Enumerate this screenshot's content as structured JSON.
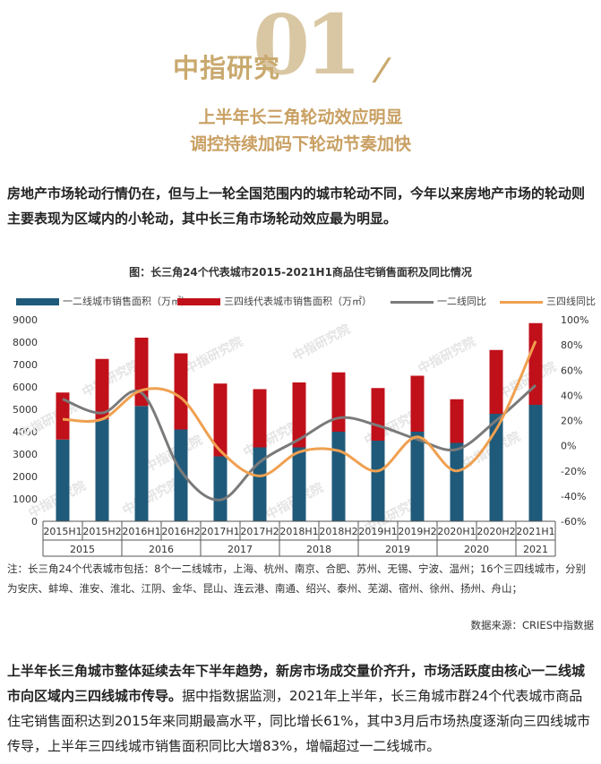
{
  "header": {
    "big_number": "01",
    "brand": "中指研究",
    "slash": "/",
    "subtitle_lines": [
      "上半年长三角轮动效应明显",
      "调控持续加码下轮动节奏加快"
    ]
  },
  "intro_paragraph": "房地产市场轮动行情仍在，但与上一轮全国范围内的城市轮动不同，今年以来房地产市场的轮动则主要表现为区域内的小轮动，其中长三角市场轮动效应最为明显。",
  "chart_data": {
    "type": "bar",
    "title": "图：长三角24个代表城市2015-2021H1商品住宅销售面积及同比情况",
    "categories": [
      "2015H1",
      "2015H2",
      "2016H1",
      "2016H2",
      "2017H1",
      "2017H2",
      "2018H1",
      "2018H2",
      "2019H1",
      "2019H2",
      "2020H1",
      "2020H2",
      "2021H1"
    ],
    "years": [
      {
        "label": "2015"
      },
      {
        "label": "2016"
      },
      {
        "label": "2017"
      },
      {
        "label": "2018"
      },
      {
        "label": "2019"
      },
      {
        "label": "2020"
      },
      {
        "label": "2021"
      }
    ],
    "series": [
      {
        "name": "一二线城市销售面积（万㎡）",
        "kind": "bar",
        "stack": true,
        "color": "#1f5a7a",
        "values": [
          3650,
          4550,
          5150,
          4100,
          2900,
          3300,
          3300,
          4000,
          3600,
          4000,
          3500,
          4800,
          5200
        ]
      },
      {
        "name": "三四线代表城市销售面积（万㎡）",
        "kind": "bar",
        "stack": true,
        "color": "#c0101a",
        "values": [
          2100,
          2700,
          3050,
          3400,
          3250,
          2600,
          2900,
          2650,
          2350,
          2500,
          1950,
          2850,
          3650
        ]
      },
      {
        "name": "一二线同比",
        "kind": "line",
        "axis": "right",
        "color": "#7a7a7a",
        "values": [
          37,
          26,
          42,
          -20,
          -43,
          -13,
          5,
          22,
          16,
          5,
          -3,
          20,
          48
        ]
      },
      {
        "name": "三四线同比",
        "kind": "line",
        "axis": "right",
        "color": "#f0a050",
        "values": [
          21,
          21,
          44,
          38,
          -4,
          -24,
          -5,
          -4,
          -20,
          7,
          -20,
          13,
          83
        ]
      }
    ],
    "y_left": {
      "min": 0,
      "max": 9000,
      "step": 1000,
      "ticks": [
        "0",
        "1000",
        "2000",
        "3000",
        "4000",
        "5000",
        "6000",
        "7000",
        "8000",
        "9000"
      ]
    },
    "y_right": {
      "min": -60,
      "max": 100,
      "step": 20,
      "ticks": [
        "-60%",
        "-40%",
        "-20%",
        "0%",
        "20%",
        "40%",
        "60%",
        "80%",
        "100%"
      ]
    },
    "watermark": "中指研究院"
  },
  "note": "注：长三角24个代表城市包括：8个一二线城市，上海、杭州、南京、合肥、苏州、无锡、宁波、温州；16个三四线城市，分别为安庆、蚌埠、淮安、淮北、江阴、金华、昆山、连云港、南通、绍兴、泰州、芜湖、宿州、徐州、扬州、舟山；",
  "source": "数据来源：CRIES中指数据",
  "paragraph2": {
    "bold": "上半年长三角城市整体延续去年下半年趋势，新房市场成交量价齐升，市场活跃度由核心一二线城市向区域内三四线城市传导。",
    "normal": "据中指数据监测，2021年上半年，长三角城市群24个代表城市商品住宅销售面积达到2015年来同期最高水平，同比增长61%，其中3月后市场热度逐渐向三四线城市传导，上半年三四线城市销售面积同比大增83%，增幅超过一二线城市。"
  }
}
